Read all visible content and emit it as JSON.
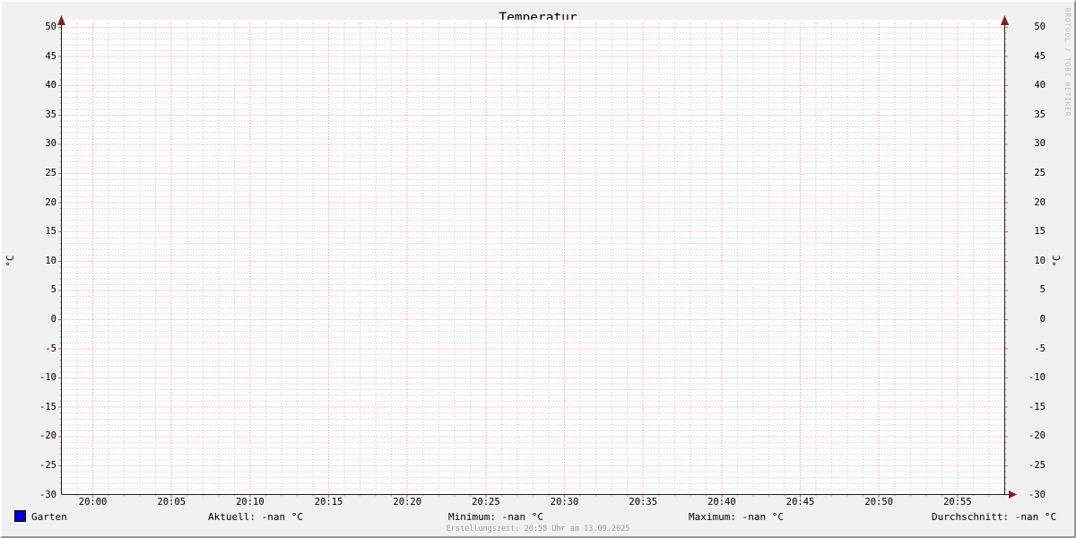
{
  "title": "Temperatur",
  "watermark": "RRDTOOL / TOBI OETIKER",
  "footer": {
    "created": "Erstellungszeit: 20:58 Uhr am 13.09.2025"
  },
  "axes": {
    "left_unit": "°C",
    "right_unit": "°C"
  },
  "legend": {
    "series_label": "Garten",
    "series_color": "#0000cc",
    "stats": [
      {
        "name": "aktuell",
        "label": "Aktuell: -nan °C"
      },
      {
        "name": "minimum",
        "label": "Minimum: -nan °C"
      },
      {
        "name": "maximum",
        "label": "Maximum: -nan °C"
      },
      {
        "name": "durchschnitt",
        "label": "Durchschnitt: -nan °C"
      }
    ]
  },
  "chart_data": {
    "type": "line",
    "title": "Temperatur",
    "ylabel": "°C",
    "ylim": [
      -30,
      50
    ],
    "y_tick_step": 5,
    "y_minor_step": 1,
    "y_ticks": [
      50,
      45,
      40,
      35,
      30,
      25,
      20,
      15,
      10,
      5,
      0,
      -5,
      -10,
      -15,
      -20,
      -25,
      -30
    ],
    "x_ticks": [
      "20:00",
      "20:05",
      "20:10",
      "20:15",
      "20:20",
      "20:25",
      "20:30",
      "20:35",
      "20:40",
      "20:45",
      "20:50",
      "20:55"
    ],
    "x_minor_ticks_per_major": 5,
    "grid": true,
    "legend_position": "bottom",
    "series": [
      {
        "name": "Garten",
        "color": "#0000cc",
        "values": []
      }
    ],
    "stats": {
      "aktuell": "-nan °C",
      "minimum": "-nan °C",
      "maximum": "-nan °C",
      "durchschnitt": "-nan °C"
    }
  },
  "colors": {
    "background": "#f1f1f1",
    "canvas": "#fcfcfc",
    "minor_grid": "#cccccc",
    "major_grid": "#e05050",
    "axis": "#222222",
    "arrow": "#7f2020",
    "series": "#0000cc",
    "text": "#000000",
    "muted_text": "#9f9f9f",
    "watermark": "#bcbcbc"
  }
}
